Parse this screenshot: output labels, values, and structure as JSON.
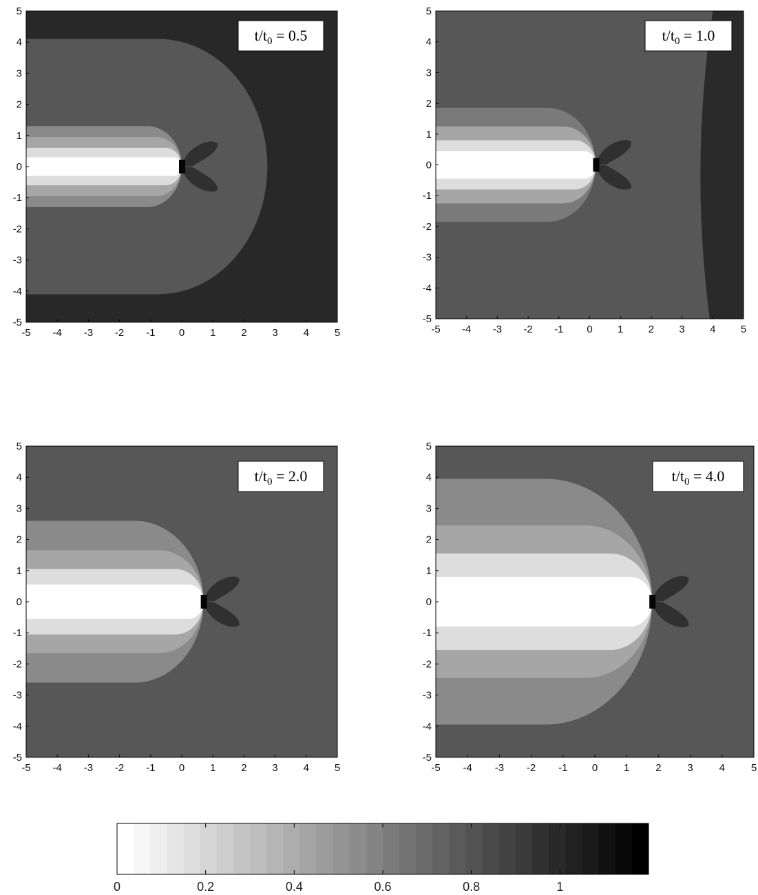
{
  "chart_data": [
    {
      "type": "heatmap",
      "annotation": {
        "prefix": "t/t",
        "sub": "0",
        "suffix": " = 0.5"
      },
      "t_over_t0": 0.5,
      "xlim": [
        -5,
        5
      ],
      "ylim": [
        -5,
        5
      ],
      "xticks": [
        -5,
        -4,
        -3,
        -2,
        -1,
        0,
        1,
        2,
        3,
        4,
        5
      ],
      "yticks": [
        -5,
        -4,
        -3,
        -2,
        -1,
        0,
        1,
        2,
        3,
        4,
        5
      ],
      "background_color": "#282828",
      "front_x": 0.0,
      "bands": [
        {
          "color": "#575757",
          "half_width": 4.1,
          "reach": 2.75
        },
        {
          "color": "#8a8a8a",
          "half_width": 1.3,
          "reach": 0.0
        },
        {
          "color": "#a6a6a6",
          "half_width": 0.95,
          "reach": 0.0
        },
        {
          "color": "#dddddd",
          "half_width": 0.6,
          "reach": 0.0
        },
        {
          "color": "#ffffff",
          "half_width": 0.3,
          "reach": 0.0
        }
      ],
      "lobe_color": "#303030"
    },
    {
      "type": "heatmap",
      "annotation": {
        "prefix": "t/t",
        "sub": "0",
        "suffix": " = 1.0"
      },
      "t_over_t0": 1.0,
      "xlim": [
        -5,
        5
      ],
      "ylim": [
        -5,
        5
      ],
      "xticks": [
        -5,
        -4,
        -3,
        -2,
        -1,
        0,
        1,
        2,
        3,
        4,
        5
      ],
      "yticks": [
        -5,
        -4,
        -3,
        -2,
        -1,
        0,
        1,
        2,
        3,
        4,
        5
      ],
      "background_color": "#575757",
      "dark_region": {
        "color": "#2a2a2a",
        "boundary_x": [
          4.0,
          3.5,
          3.9
        ],
        "boundary_y": [
          5,
          0,
          -5
        ]
      },
      "front_x": 0.2,
      "bands": [
        {
          "color": "#7a7a7a",
          "half_width": 1.85,
          "reach": 0.2
        },
        {
          "color": "#a6a6a6",
          "half_width": 1.25,
          "reach": 0.2
        },
        {
          "color": "#dddddd",
          "half_width": 0.8,
          "reach": 0.2
        },
        {
          "color": "#ffffff",
          "half_width": 0.45,
          "reach": 0.2
        }
      ],
      "lobe_color": "#303030"
    },
    {
      "type": "heatmap",
      "annotation": {
        "prefix": "t/t",
        "sub": "0",
        "suffix": " = 2.0"
      },
      "t_over_t0": 2.0,
      "xlim": [
        -5,
        5
      ],
      "ylim": [
        -5,
        5
      ],
      "xticks": [
        -5,
        -4,
        -3,
        -2,
        -1,
        0,
        1,
        2,
        3,
        4,
        5
      ],
      "yticks": [
        -5,
        -4,
        -3,
        -2,
        -1,
        0,
        1,
        2,
        3,
        4,
        5
      ],
      "background_color": "#575757",
      "front_x": 0.7,
      "bands": [
        {
          "color": "#8a8a8a",
          "half_width": 2.6,
          "reach": 0.7
        },
        {
          "color": "#a6a6a6",
          "half_width": 1.65,
          "reach": 0.7
        },
        {
          "color": "#dddddd",
          "half_width": 1.05,
          "reach": 0.7
        },
        {
          "color": "#ffffff",
          "half_width": 0.55,
          "reach": 0.7
        }
      ],
      "lobe_color": "#303030"
    },
    {
      "type": "heatmap",
      "annotation": {
        "prefix": "t/t",
        "sub": "0",
        "suffix": " = 4.0"
      },
      "t_over_t0": 4.0,
      "xlim": [
        -5,
        5
      ],
      "ylim": [
        -5,
        5
      ],
      "xticks": [
        -5,
        -4,
        -3,
        -2,
        -1,
        0,
        1,
        2,
        3,
        4,
        5
      ],
      "yticks": [
        -5,
        -4,
        -3,
        -2,
        -1,
        0,
        1,
        2,
        3,
        4,
        5
      ],
      "background_color": "#575757",
      "front_x": 1.8,
      "bands": [
        {
          "color": "#8a8a8a",
          "half_width": 3.95,
          "reach": 1.8
        },
        {
          "color": "#a6a6a6",
          "half_width": 2.45,
          "reach": 1.8
        },
        {
          "color": "#dddddd",
          "half_width": 1.55,
          "reach": 1.8
        },
        {
          "color": "#ffffff",
          "half_width": 0.8,
          "reach": 1.8
        }
      ],
      "lobe_color": "#303030"
    }
  ],
  "colorbar": {
    "tick_labels": [
      "0",
      "0.2",
      "0.4",
      "0.6",
      "0.8",
      "1"
    ],
    "tick_values": [
      0,
      0.2,
      0.4,
      0.6,
      0.8,
      1.0
    ],
    "range": [
      0,
      1.2
    ],
    "levels": 32,
    "start_color": "#ffffff",
    "end_color": "#000000"
  }
}
